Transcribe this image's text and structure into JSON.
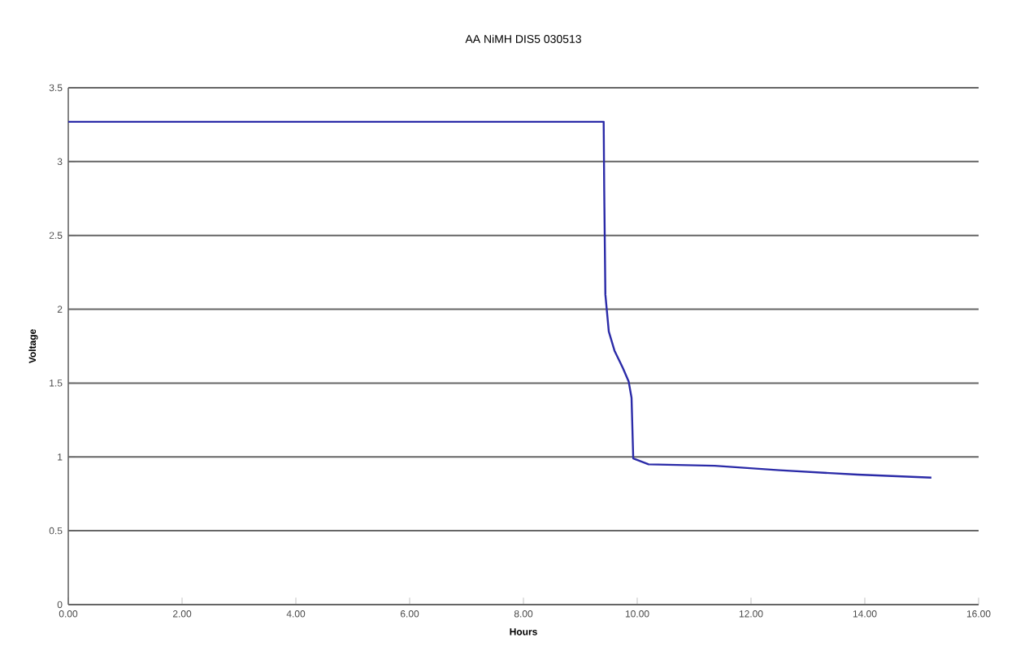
{
  "chart_data": {
    "type": "line",
    "title": "AA NiMH DIS5 030513",
    "xlabel": "Hours",
    "ylabel": "Voltage",
    "xlim": [
      0,
      16
    ],
    "xticks": [
      {
        "value": 0,
        "label": "0.00"
      },
      {
        "value": 2,
        "label": "2.00"
      },
      {
        "value": 4,
        "label": "4.00"
      },
      {
        "value": 6,
        "label": "6.00"
      },
      {
        "value": 8,
        "label": "8.00"
      },
      {
        "value": 10,
        "label": "10.00"
      },
      {
        "value": 12,
        "label": "12.00"
      },
      {
        "value": 14,
        "label": "14.00"
      },
      {
        "value": 16,
        "label": "16.00"
      }
    ],
    "ylim": [
      0,
      3.5
    ],
    "yticks": [
      0,
      0.5,
      1,
      1.5,
      2,
      2.5,
      3,
      3.5
    ],
    "grid": "y",
    "marker": "none",
    "line_style": "solid",
    "series": [
      {
        "color": "#2b2ba8",
        "x": [
          0,
          2,
          4,
          6,
          8,
          9.41,
          9.42,
          9.44,
          9.5,
          9.6,
          9.75,
          9.85,
          9.9,
          9.93,
          10.2,
          11.36,
          12.5,
          13.87,
          15.17
        ],
        "values": [
          3.27,
          3.27,
          3.27,
          3.27,
          3.27,
          3.27,
          2.8,
          2.1,
          1.85,
          1.72,
          1.6,
          1.51,
          1.4,
          0.99,
          0.95,
          0.94,
          0.91,
          0.88,
          0.86
        ]
      }
    ]
  }
}
